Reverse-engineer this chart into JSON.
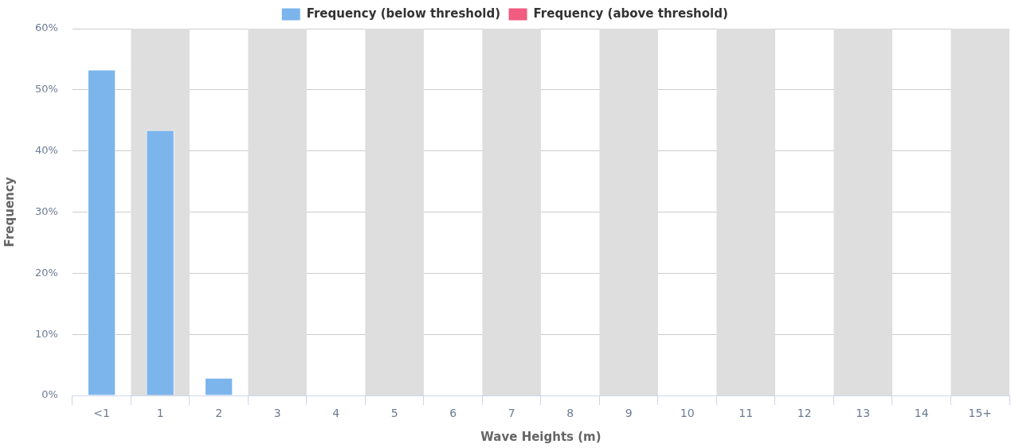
{
  "chart_data": {
    "type": "bar",
    "xlabel": "Wave Heights (m)",
    "ylabel": "Frequency",
    "categories": [
      "<1",
      "1",
      "2",
      "3",
      "4",
      "5",
      "6",
      "7",
      "8",
      "9",
      "10",
      "11",
      "12",
      "13",
      "14",
      "15+"
    ],
    "series": [
      {
        "name": "Frequency (below threshold)",
        "color": "#7cb5ec",
        "values": [
          53.3,
          43.4,
          2.9,
          0,
          0,
          0,
          0,
          0,
          0,
          0,
          0,
          0,
          0,
          0,
          0,
          0
        ]
      },
      {
        "name": "Frequency (above threshold)",
        "color": "#f15c80",
        "values": [
          0,
          0,
          0,
          0,
          0,
          0,
          0,
          0,
          0,
          0,
          0,
          0,
          0,
          0,
          0,
          0
        ]
      }
    ],
    "ylim": [
      0,
      60
    ],
    "yticks": [
      {
        "value": 0,
        "label": "0%"
      },
      {
        "value": 10,
        "label": "10%"
      },
      {
        "value": 20,
        "label": "20%"
      },
      {
        "value": 30,
        "label": "30%"
      },
      {
        "value": 40,
        "label": "40%"
      },
      {
        "value": 50,
        "label": "50%"
      },
      {
        "value": 60,
        "label": "60%"
      }
    ],
    "bands": [
      {
        "axis": "x",
        "from": "1",
        "to": "1",
        "color": "#dedede"
      },
      {
        "axis": "x",
        "from": "3",
        "to": "3",
        "color": "#dedede"
      },
      {
        "axis": "x",
        "from": "5",
        "to": "5",
        "color": "#dedede"
      },
      {
        "axis": "x",
        "from": "7",
        "to": "7",
        "color": "#dedede"
      },
      {
        "axis": "x",
        "from": "9",
        "to": "9",
        "color": "#dedede"
      },
      {
        "axis": "x",
        "from": "11",
        "to": "11",
        "color": "#dedede"
      },
      {
        "axis": "x",
        "from": "13",
        "to": "13",
        "color": "#dedede"
      },
      {
        "axis": "x",
        "from": "15+",
        "to": "15+",
        "color": "#dedede"
      }
    ],
    "grid": "y",
    "legend": "top"
  }
}
